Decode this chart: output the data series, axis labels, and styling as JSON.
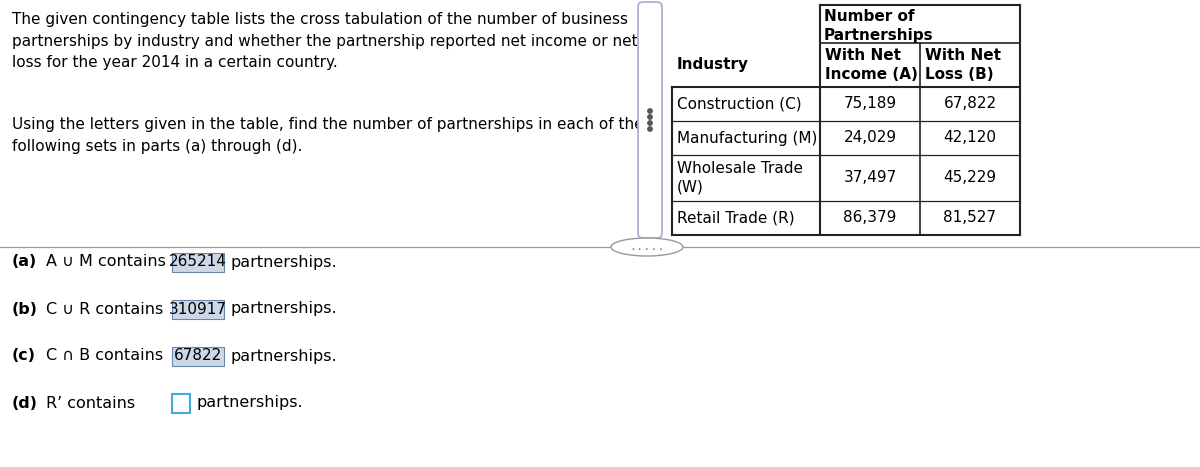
{
  "description_text": "The given contingency table lists the cross tabulation of the number of business\npartnerships by industry and whether the partnership reported net income or net\nloss for the year 2014 in a certain country.",
  "instruction_text": "Using the letters given in the table, find the number of partnerships in each of the\nfollowing sets in parts (a) through (d).",
  "table_header_top": "Number of\nPartnerships",
  "table_col1_header": "Industry",
  "table_col2_header": "With Net\nIncome (A)",
  "table_col3_header": "With Net\nLoss (B)",
  "table_rows": [
    [
      "Construction (C)",
      "75,189",
      "67,822"
    ],
    [
      "Manufacturing (M)",
      "24,029",
      "42,120"
    ],
    [
      "Wholesale Trade\n(W)",
      "37,497",
      "45,229"
    ],
    [
      "Retail Trade (R)",
      "86,379",
      "81,527"
    ]
  ],
  "answers": [
    {
      "label": "(a)",
      "set": "A ∪ M",
      "word": "contains",
      "value": "265214",
      "suffix": "partnerships.",
      "filled": true
    },
    {
      "label": "(b)",
      "set": "C ∪ R",
      "word": "contains",
      "value": "310917",
      "suffix": "partnerships.",
      "filled": true
    },
    {
      "label": "(c)",
      "set": "C ∩ B",
      "word": "contains",
      "value": "67822",
      "suffix": "partnerships.",
      "filled": true
    },
    {
      "label": "(d)",
      "set": "R’",
      "word": "contains",
      "value": "",
      "suffix": "partnerships.",
      "filled": false
    }
  ],
  "bg_color": "#ffffff",
  "text_color": "#000000",
  "box_fill_filled": "#ccd8e8",
  "box_fill_empty": "#ffffff",
  "box_border_filled": "#6688aa",
  "box_border_empty": "#44aadd",
  "divider_color": "#999999",
  "table_border_color": "#222222",
  "font_size_desc": 11.0,
  "font_size_table": 11.0,
  "font_size_answer": 11.5,
  "dots_color": "#888888",
  "bracket_color": "#aaaacc"
}
